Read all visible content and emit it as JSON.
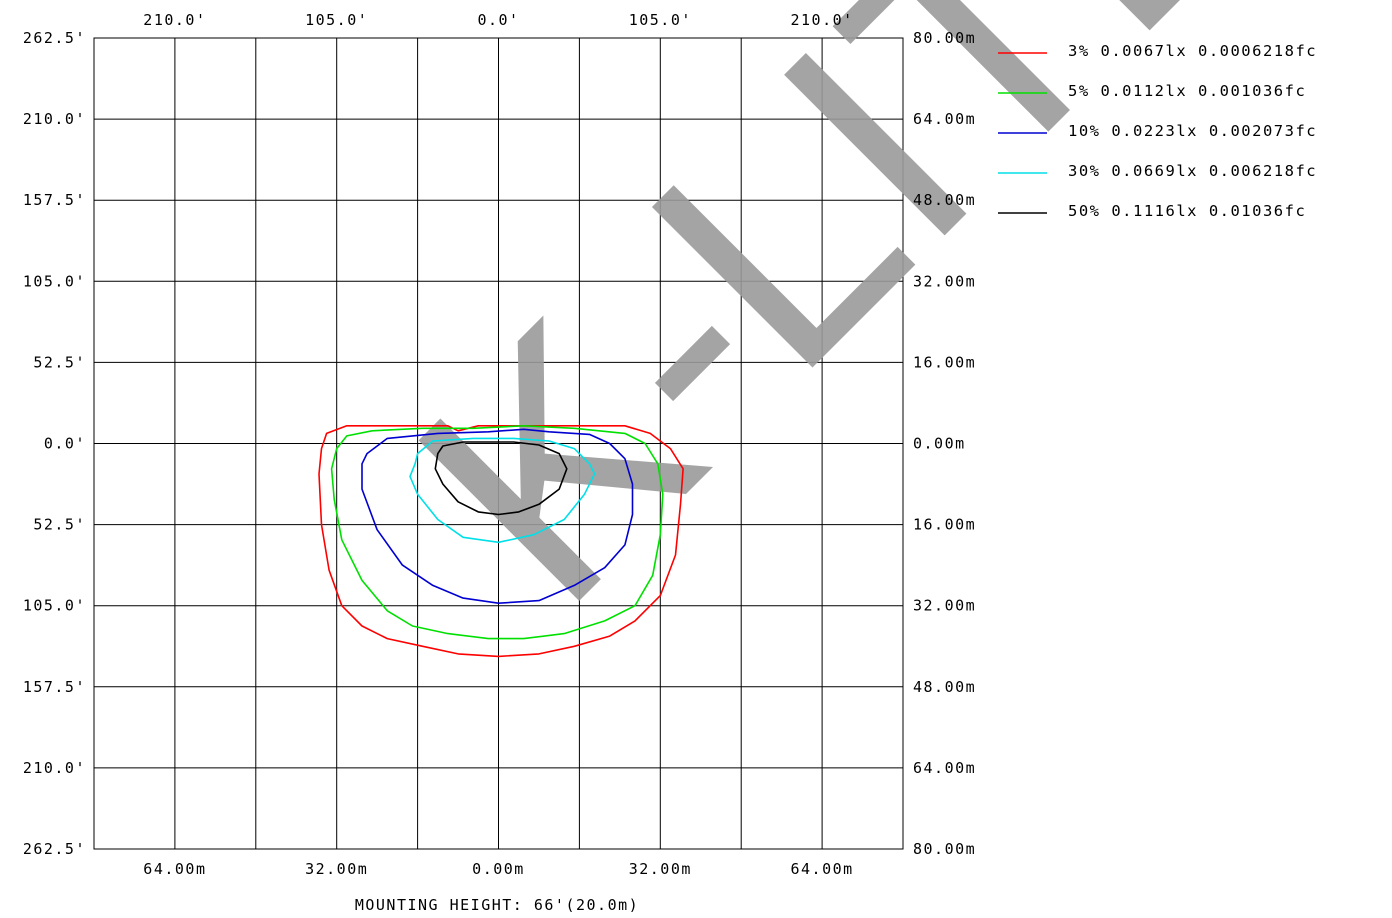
{
  "chart_data": {
    "type": "contour",
    "top_tick_labels": [
      "210.0'",
      "105.0'",
      "0.0'",
      "105.0'",
      "210.0'"
    ],
    "bottom_tick_labels": [
      "64.00m",
      "32.00m",
      "0.00m",
      "32.00m",
      "64.00m"
    ],
    "left_tick_labels": [
      "262.5'",
      "210.0'",
      "157.5'",
      "105.0'",
      "52.5'",
      "0.0'",
      "52.5'",
      "105.0'",
      "157.5'",
      "210.0'",
      "262.5'"
    ],
    "right_tick_labels": [
      "80.00m",
      "64.00m",
      "48.00m",
      "32.00m",
      "16.00m",
      "0.00m",
      "16.00m",
      "32.00m",
      "48.00m",
      "64.00m",
      "80.00m"
    ],
    "xlim_m": [
      -80,
      80
    ],
    "ylim_m": [
      -80,
      80
    ],
    "grid": true,
    "caption": "MOUNTING HEIGHT: 66'(20.0m)",
    "watermark": "K-LITE",
    "legend_position": "top-right",
    "series": [
      {
        "label": " 3% 0.0067lx 0.0006218fc",
        "color": "#ff0000",
        "points": [
          [
            -34,
            2
          ],
          [
            -30,
            3.5
          ],
          [
            -25,
            3.5
          ],
          [
            -10,
            3.5
          ],
          [
            -8,
            2.5
          ],
          [
            -6,
            3
          ],
          [
            -4,
            3.5
          ],
          [
            5,
            3.5
          ],
          [
            15,
            3.5
          ],
          [
            25,
            3.5
          ],
          [
            30,
            2
          ],
          [
            34,
            -1
          ],
          [
            36.5,
            -5
          ],
          [
            36,
            -12
          ],
          [
            35,
            -22
          ],
          [
            32,
            -30
          ],
          [
            27,
            -35
          ],
          [
            22,
            -38
          ],
          [
            15,
            -40
          ],
          [
            8,
            -41.5
          ],
          [
            0,
            -42
          ],
          [
            -8,
            -41.5
          ],
          [
            -15,
            -40
          ],
          [
            -22,
            -38.5
          ],
          [
            -27,
            -36
          ],
          [
            -31,
            -32
          ],
          [
            -33.5,
            -25
          ],
          [
            -35,
            -16
          ],
          [
            -35.5,
            -6
          ],
          [
            -35,
            -1
          ],
          [
            -34,
            2
          ]
        ]
      },
      {
        "label": " 5% 0.0112lx 0.001036fc",
        "color": "#00e000",
        "points": [
          [
            -32,
            -1
          ],
          [
            -30,
            1.5
          ],
          [
            -25,
            2.5
          ],
          [
            -15,
            3
          ],
          [
            -5,
            3
          ],
          [
            5,
            3.5
          ],
          [
            15,
            3
          ],
          [
            25,
            2
          ],
          [
            29,
            0
          ],
          [
            31.5,
            -4
          ],
          [
            32.5,
            -10
          ],
          [
            32,
            -18
          ],
          [
            30.5,
            -26
          ],
          [
            27,
            -32
          ],
          [
            21,
            -35
          ],
          [
            13,
            -37.5
          ],
          [
            5,
            -38.5
          ],
          [
            -2,
            -38.5
          ],
          [
            -10,
            -37.5
          ],
          [
            -17,
            -36
          ],
          [
            -22,
            -33
          ],
          [
            -27,
            -27
          ],
          [
            -31,
            -19
          ],
          [
            -32.5,
            -11
          ],
          [
            -33,
            -5
          ],
          [
            -32,
            -1
          ]
        ]
      },
      {
        "label": "10% 0.0223lx 0.002073fc",
        "color": "#0000d0",
        "points": [
          [
            -26,
            -2
          ],
          [
            -22,
            1
          ],
          [
            -12,
            2
          ],
          [
            -2,
            2.3
          ],
          [
            5,
            2.8
          ],
          [
            10,
            2.3
          ],
          [
            18,
            1.8
          ],
          [
            22,
            0
          ],
          [
            25,
            -3
          ],
          [
            26.5,
            -8
          ],
          [
            26.5,
            -14
          ],
          [
            25,
            -20
          ],
          [
            21,
            -24.5
          ],
          [
            15,
            -28
          ],
          [
            8,
            -31
          ],
          [
            0,
            -31.5
          ],
          [
            -7,
            -30.5
          ],
          [
            -13,
            -28
          ],
          [
            -19,
            -24
          ],
          [
            -24,
            -17
          ],
          [
            -27,
            -9
          ],
          [
            -27,
            -4
          ],
          [
            -26,
            -2
          ]
        ]
      },
      {
        "label": "30% 0.0669lx 0.006218fc",
        "color": "#00e0e8",
        "points": [
          [
            -16,
            -2
          ],
          [
            -13,
            0.5
          ],
          [
            -5,
            1
          ],
          [
            3,
            1
          ],
          [
            10,
            0.5
          ],
          [
            15,
            -1
          ],
          [
            18,
            -4
          ],
          [
            19,
            -6
          ],
          [
            17,
            -10
          ],
          [
            13,
            -15
          ],
          [
            7,
            -18
          ],
          [
            0,
            -19.5
          ],
          [
            -7,
            -18.5
          ],
          [
            -12,
            -15
          ],
          [
            -16,
            -10
          ],
          [
            -17.5,
            -6.5
          ],
          [
            -16.5,
            -4
          ],
          [
            -16,
            -2
          ]
        ]
      },
      {
        "label": "50% 0.1116lx 0.01036fc",
        "color": "#000000",
        "points": [
          [
            -11,
            -0.5
          ],
          [
            -7,
            0.3
          ],
          [
            3,
            0.3
          ],
          [
            8,
            -0.3
          ],
          [
            12,
            -2
          ],
          [
            13.5,
            -5
          ],
          [
            12,
            -9
          ],
          [
            8,
            -12
          ],
          [
            4,
            -13.5
          ],
          [
            0,
            -14
          ],
          [
            -4,
            -13.5
          ],
          [
            -8,
            -11.5
          ],
          [
            -11,
            -8
          ],
          [
            -12.5,
            -5
          ],
          [
            -12,
            -2
          ],
          [
            -11,
            -0.5
          ]
        ]
      }
    ]
  }
}
